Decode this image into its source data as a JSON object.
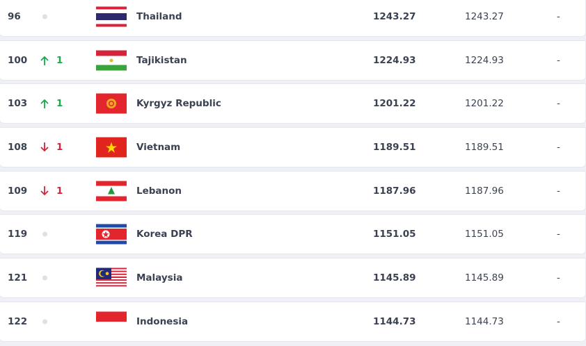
{
  "rows": [
    {
      "rank": "96",
      "move": "none",
      "move_value": "",
      "flag": "thailand-flag",
      "country": "Thailand",
      "points": "1243.27",
      "previous_points": "1243.27",
      "change": "-"
    },
    {
      "rank": "100",
      "move": "up",
      "move_value": "1",
      "flag": "tajikistan-flag",
      "country": "Tajikistan",
      "points": "1224.93",
      "previous_points": "1224.93",
      "change": "-"
    },
    {
      "rank": "103",
      "move": "up",
      "move_value": "1",
      "flag": "kyrgyz-republic-flag",
      "country": "Kyrgyz Republic",
      "points": "1201.22",
      "previous_points": "1201.22",
      "change": "-"
    },
    {
      "rank": "108",
      "move": "down",
      "move_value": "1",
      "flag": "vietnam-flag",
      "country": "Vietnam",
      "points": "1189.51",
      "previous_points": "1189.51",
      "change": "-"
    },
    {
      "rank": "109",
      "move": "down",
      "move_value": "1",
      "flag": "lebanon-flag",
      "country": "Lebanon",
      "points": "1187.96",
      "previous_points": "1187.96",
      "change": "-"
    },
    {
      "rank": "119",
      "move": "none",
      "move_value": "",
      "flag": "korea-dpr-flag",
      "country": "Korea DPR",
      "points": "1151.05",
      "previous_points": "1151.05",
      "change": "-"
    },
    {
      "rank": "121",
      "move": "none",
      "move_value": "",
      "flag": "malaysia-flag",
      "country": "Malaysia",
      "points": "1145.89",
      "previous_points": "1145.89",
      "change": "-"
    },
    {
      "rank": "122",
      "move": "none",
      "move_value": "",
      "flag": "indonesia-flag",
      "country": "Indonesia",
      "points": "1144.73",
      "previous_points": "1144.73",
      "change": "-"
    }
  ],
  "colors": {
    "up": "#1aa84a",
    "down": "#d0253a"
  }
}
